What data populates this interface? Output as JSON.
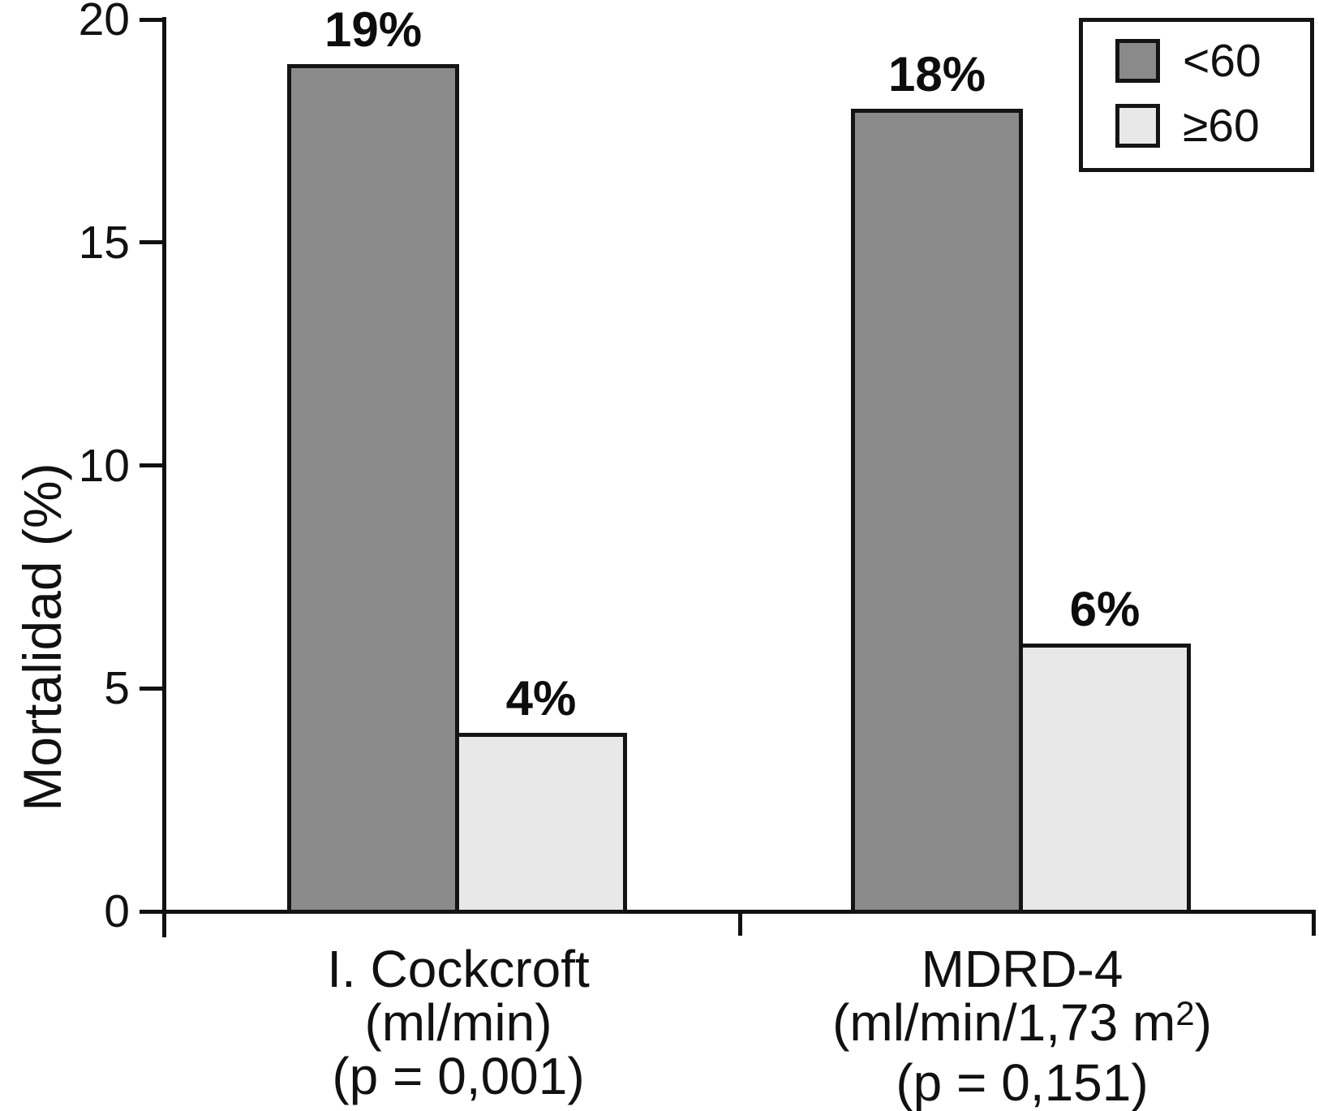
{
  "chart_data": {
    "type": "bar",
    "title": "",
    "ylabel": "Mortalidad (%)",
    "xlabel": "",
    "ylim": [
      0,
      20
    ],
    "yticks": [
      {
        "value": 20,
        "label": "20"
      },
      {
        "value": 15,
        "label": "15"
      },
      {
        "value": 10,
        "label": "10"
      },
      {
        "value": 5,
        "label": "5"
      },
      {
        "value": 0,
        "label": "0"
      }
    ],
    "grid": false,
    "legend_position": "top-right",
    "categories": [
      {
        "line1": "I. Cockcroft",
        "line2_pre": "(ml/min)",
        "line2_sup": "",
        "line2_post": "",
        "line3": "(p = 0,001)"
      },
      {
        "line1": "MDRD-4",
        "line2_pre": "(ml/min/1,73 m",
        "line2_sup": "2",
        "line2_post": ")",
        "line3": "(p = 0,151)"
      }
    ],
    "series": [
      {
        "name": "<60",
        "color": "#8a8a8a",
        "values": [
          19,
          18
        ],
        "value_labels": [
          "19%",
          "18%"
        ]
      },
      {
        "name": "≥60",
        "color": "#e8e8e8",
        "values": [
          4,
          6
        ],
        "value_labels": [
          "4%",
          "6%"
        ]
      }
    ]
  }
}
